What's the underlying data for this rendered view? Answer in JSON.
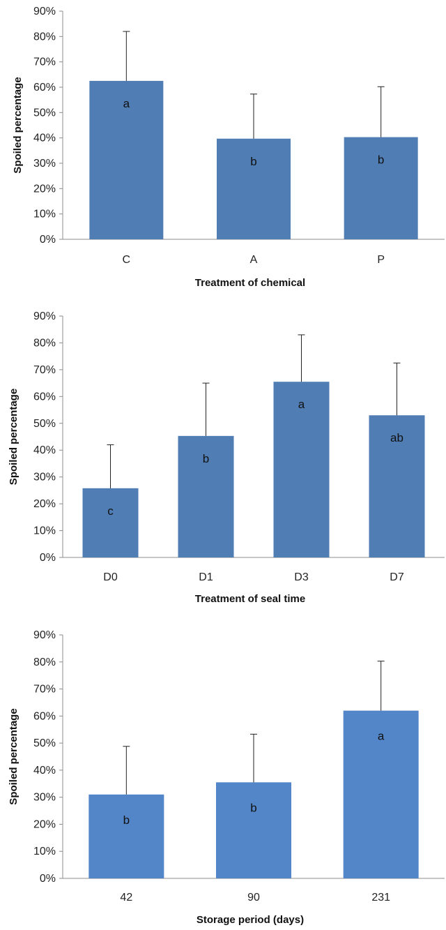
{
  "chart_data": [
    {
      "type": "bar",
      "categories": [
        "C",
        "A",
        "P"
      ],
      "series": [
        {
          "values": [
            0.625,
            0.397,
            0.403
          ],
          "error_upper": [
            0.82,
            0.573,
            0.602
          ],
          "labels": [
            "a",
            "b",
            "b"
          ],
          "color": "#4f7db4"
        }
      ],
      "xlabel": "Treatment of chemical",
      "ylabel": "Spoiled percentage",
      "ylim": [
        0,
        0.9
      ],
      "yticks": [
        "0%",
        "10%",
        "20%",
        "30%",
        "40%",
        "50%",
        "60%",
        "70%",
        "80%",
        "90%"
      ],
      "grid": false,
      "legend": "none"
    },
    {
      "type": "bar",
      "categories": [
        "D0",
        "D1",
        "D3",
        "D7"
      ],
      "series": [
        {
          "values": [
            0.258,
            0.453,
            0.655,
            0.53
          ],
          "error_upper": [
            0.42,
            0.65,
            0.83,
            0.725
          ],
          "labels": [
            "c",
            "b",
            "a",
            "ab"
          ],
          "color": "#4f7db4"
        }
      ],
      "xlabel": "Treatment of seal time",
      "ylabel": "Spoiled percentage",
      "ylim": [
        0,
        0.9
      ],
      "yticks": [
        "0%",
        "10%",
        "20%",
        "30%",
        "40%",
        "50%",
        "60%",
        "70%",
        "80%",
        "90%"
      ],
      "grid": false,
      "legend": "none"
    },
    {
      "type": "bar",
      "categories": [
        "42",
        "90",
        "231"
      ],
      "series": [
        {
          "values": [
            0.31,
            0.355,
            0.62
          ],
          "error_upper": [
            0.488,
            0.533,
            0.803
          ],
          "labels": [
            "b",
            "b",
            "a"
          ],
          "color": "#5286c8"
        }
      ],
      "xlabel": "Storage period (days)",
      "ylabel": "Spoiled percentage",
      "ylim": [
        0,
        0.9
      ],
      "yticks": [
        "0%",
        "10%",
        "20%",
        "30%",
        "40%",
        "50%",
        "60%",
        "70%",
        "80%",
        "90%"
      ],
      "grid": false,
      "legend": "none"
    }
  ]
}
